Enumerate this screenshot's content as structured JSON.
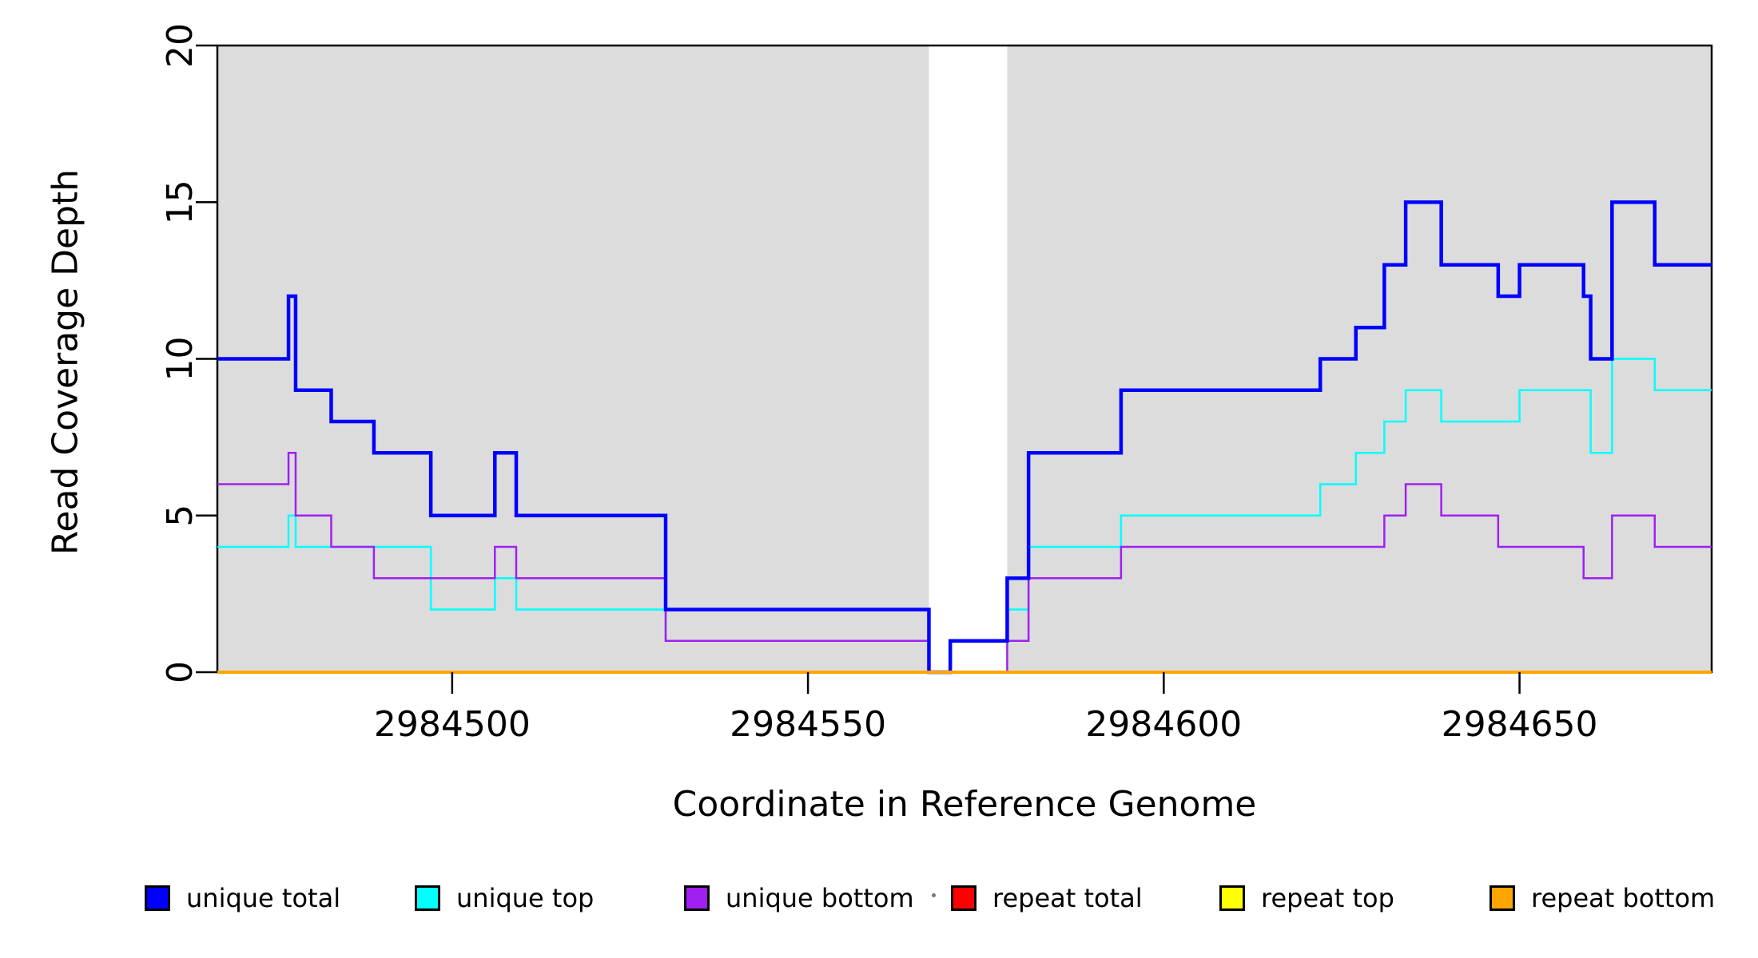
{
  "chart_data": {
    "type": "line",
    "subtype": "step-coverage",
    "title": "",
    "xlabel": "Coordinate in Reference Genome",
    "ylabel": "Read Coverage Depth",
    "xlim": [
      2984467,
      2984677
    ],
    "ylim": [
      0,
      20
    ],
    "grid": false,
    "x_ticks": [
      2984500,
      2984550,
      2984600,
      2984650
    ],
    "x_tick_labels": [
      "2984500",
      "2984550",
      "2984600",
      "2984650"
    ],
    "y_ticks": [
      0,
      5,
      10,
      15,
      20
    ],
    "y_tick_labels": [
      "0",
      "5",
      "10",
      "15",
      "20"
    ],
    "plot_bg_color": "#ffffff",
    "shaded_regions": [
      {
        "name": "unique-mappability-left",
        "x0": 2984467,
        "x1": 2984567,
        "color": "#DCDCDC"
      },
      {
        "name": "unique-mappability-right",
        "x0": 2984578,
        "x1": 2984677,
        "color": "#DCDCDC"
      }
    ],
    "series": [
      {
        "name": "unique total",
        "color": "#0000FF",
        "line_width": 4.5,
        "z": 3,
        "steps": [
          [
            2984467,
            10
          ],
          [
            2984477,
            12
          ],
          [
            2984478,
            9
          ],
          [
            2984483,
            8
          ],
          [
            2984489,
            7
          ],
          [
            2984497,
            5
          ],
          [
            2984506,
            7
          ],
          [
            2984509,
            5
          ],
          [
            2984530,
            2
          ],
          [
            2984567,
            0
          ],
          [
            2984570,
            1
          ],
          [
            2984578,
            3
          ],
          [
            2984581,
            7
          ],
          [
            2984594,
            9
          ],
          [
            2984622,
            10
          ],
          [
            2984627,
            11
          ],
          [
            2984631,
            13
          ],
          [
            2984634,
            15
          ],
          [
            2984639,
            13
          ],
          [
            2984647,
            12
          ],
          [
            2984650,
            13
          ],
          [
            2984659,
            12
          ],
          [
            2984660,
            10
          ],
          [
            2984663,
            15
          ],
          [
            2984669,
            13
          ]
        ]
      },
      {
        "name": "unique top",
        "color": "#00FFFF",
        "line_width": 2.5,
        "z": 1,
        "steps": [
          [
            2984467,
            4
          ],
          [
            2984477,
            5
          ],
          [
            2984478,
            4
          ],
          [
            2984497,
            2
          ],
          [
            2984506,
            3
          ],
          [
            2984509,
            2
          ],
          [
            2984530,
            1
          ],
          [
            2984567,
            0
          ],
          [
            2984570,
            1
          ],
          [
            2984578,
            2
          ],
          [
            2984581,
            4
          ],
          [
            2984594,
            5
          ],
          [
            2984622,
            6
          ],
          [
            2984627,
            7
          ],
          [
            2984631,
            8
          ],
          [
            2984634,
            9
          ],
          [
            2984639,
            8
          ],
          [
            2984650,
            9
          ],
          [
            2984660,
            7
          ],
          [
            2984663,
            10
          ],
          [
            2984669,
            9
          ]
        ]
      },
      {
        "name": "unique bottom",
        "color": "#A020F0",
        "line_width": 2.5,
        "z": 2,
        "steps": [
          [
            2984467,
            6
          ],
          [
            2984477,
            7
          ],
          [
            2984478,
            5
          ],
          [
            2984483,
            4
          ],
          [
            2984489,
            3
          ],
          [
            2984506,
            4
          ],
          [
            2984509,
            3
          ],
          [
            2984530,
            1
          ],
          [
            2984567,
            0
          ],
          [
            2984578,
            1
          ],
          [
            2984581,
            3
          ],
          [
            2984594,
            4
          ],
          [
            2984631,
            5
          ],
          [
            2984634,
            6
          ],
          [
            2984639,
            5
          ],
          [
            2984647,
            4
          ],
          [
            2984659,
            3
          ],
          [
            2984663,
            5
          ],
          [
            2984669,
            4
          ]
        ]
      },
      {
        "name": "repeat total",
        "color": "#FF0000",
        "line_width": 2.5,
        "z": 4,
        "steps": [
          [
            2984467,
            0
          ]
        ]
      },
      {
        "name": "repeat top",
        "color": "#FFFF00",
        "line_width": 2.5,
        "z": 5,
        "steps": [
          [
            2984467,
            0
          ]
        ]
      },
      {
        "name": "repeat bottom",
        "color": "#FFA500",
        "line_width": 4,
        "z": 6,
        "steps": [
          [
            2984467,
            0
          ]
        ]
      }
    ],
    "legend": {
      "position": "bottom",
      "items": [
        {
          "label": "unique total",
          "color": "#0000FF"
        },
        {
          "label": "unique top",
          "color": "#00FFFF"
        },
        {
          "label": "unique bottom",
          "color": "#A020F0"
        },
        {
          "label": "repeat total",
          "color": "#FF0000"
        },
        {
          "label": "repeat top",
          "color": "#FFFF00"
        },
        {
          "label": "repeat bottom",
          "color": "#FFA500"
        }
      ]
    },
    "axis_color": "#000000",
    "decorations": {
      "artifact_dot": {
        "x": 1166,
        "y": 1119
      }
    }
  }
}
